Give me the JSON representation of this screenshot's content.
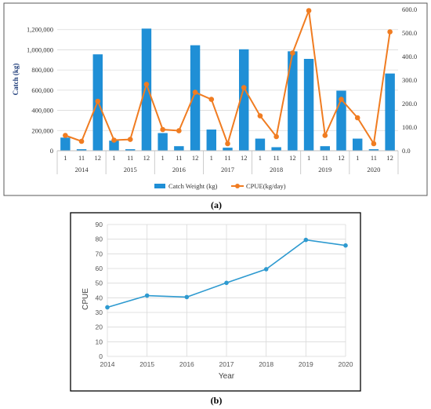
{
  "chart_data": [
    {
      "type": "bar+line",
      "panel_label": "(a)",
      "ylabel_left": "Catch (kg)",
      "ylim_left": [
        0,
        1400000
      ],
      "left_ticks": [
        "0",
        "200,000",
        "400,000",
        "600,000",
        "800,000",
        "1,000,000",
        "1,200,000"
      ],
      "ylim_right": [
        0,
        600
      ],
      "right_ticks": [
        "0.0",
        "100.0",
        "200.0",
        "300.0",
        "400.0",
        "500.0",
        "600.0"
      ],
      "month_labels": [
        "1",
        "11",
        "12"
      ],
      "years": [
        "2014",
        "2015",
        "2016",
        "2017",
        "2018",
        "2019",
        "2020"
      ],
      "series": [
        {
          "name": "Catch Weight (kg)",
          "type": "bar",
          "color": "#1f8fd6",
          "values": [
            130000,
            15000,
            955000,
            100000,
            15000,
            1210000,
            175000,
            45000,
            1045000,
            210000,
            30000,
            1005000,
            120000,
            35000,
            985000,
            910000,
            45000,
            595000,
            120000,
            15000,
            765000
          ]
        },
        {
          "name": "CPUE(kg/day)",
          "type": "line",
          "color": "#f07c21",
          "values": [
            65,
            40,
            210,
            45,
            48,
            282,
            90,
            85,
            248,
            218,
            30,
            268,
            148,
            60,
            415,
            595,
            65,
            218,
            140,
            30,
            505
          ]
        }
      ],
      "legend_position": "bottom",
      "grid": true
    },
    {
      "type": "line",
      "panel_label": "(b)",
      "xlabel": "Year",
      "ylabel": "CPUE",
      "x": [
        "2014",
        "2015",
        "2016",
        "2017",
        "2018",
        "2019",
        "2020"
      ],
      "ylim": [
        0,
        90
      ],
      "y_ticks": [
        "0",
        "10",
        "20",
        "30",
        "40",
        "50",
        "60",
        "70",
        "80",
        "90"
      ],
      "series": [
        {
          "name": "",
          "color": "#2e9ad0",
          "values": [
            33.5,
            41.5,
            40.5,
            50.2,
            59.5,
            79.5,
            75.7
          ]
        }
      ],
      "grid": true
    }
  ]
}
